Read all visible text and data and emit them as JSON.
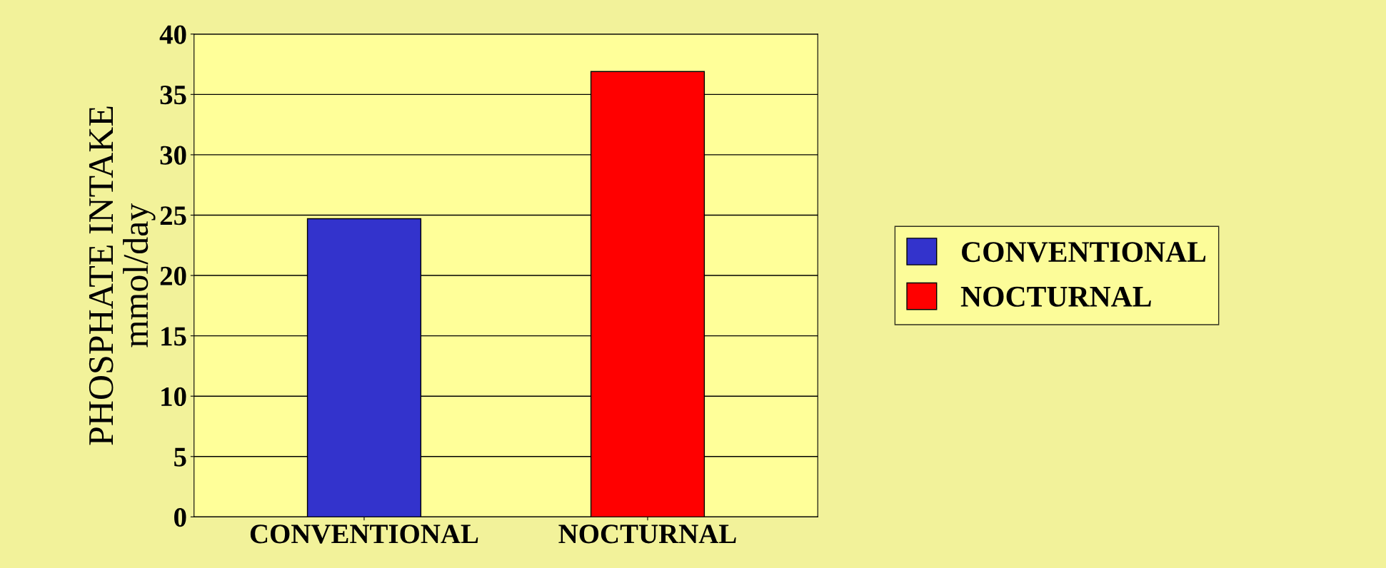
{
  "chart_data": {
    "type": "bar",
    "ylabel": "PHOSPHATE INTAKE\nmmol/day",
    "categories": [
      "CONVENTIONAL",
      "NOCTURNAL"
    ],
    "series": [
      {
        "name": "CONVENTIONAL",
        "color": "#3333cc",
        "values": [
          24.7,
          null
        ]
      },
      {
        "name": "NOCTURNAL",
        "color": "#ff0000",
        "values": [
          null,
          36.9
        ]
      }
    ],
    "ylim": [
      0,
      40
    ],
    "yticks": [
      0,
      5,
      10,
      15,
      20,
      25,
      30,
      35,
      40
    ],
    "grid": "y",
    "legend": "right"
  }
}
